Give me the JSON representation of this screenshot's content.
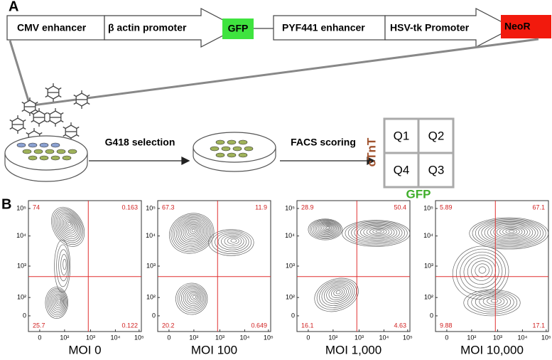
{
  "panel_a": {
    "label": "A",
    "construct": [
      "CMV enhancer",
      "β actin promoter",
      "GFP",
      "PYF441 enhancer",
      "HSV-tk Promoter",
      "NeoR"
    ],
    "steps": [
      "G418 selection",
      "FACS scoring"
    ],
    "quadrant_grid": {
      "y_label": "cTnT",
      "x_label": "GFP",
      "cells": [
        "Q1",
        "Q2",
        "Q4",
        "Q3"
      ]
    }
  },
  "panel_b": {
    "label": "B",
    "yticks": [
      "10⁵",
      "10⁴",
      "10³",
      "10²",
      "0"
    ],
    "xticks": [
      "0",
      "10²",
      "10³",
      "10⁴",
      "10⁵"
    ],
    "plots": [
      {
        "title": "MOI 0",
        "quadrants": [
          "74",
          "0.163",
          "25.7",
          "0.122"
        ]
      },
      {
        "title": "MOI 100",
        "quadrants": [
          "67.3",
          "11.9",
          "20.2",
          "0.649"
        ]
      },
      {
        "title": "MOI 1,000",
        "quadrants": [
          "28.9",
          "50.4",
          "16.1",
          "4.63"
        ]
      },
      {
        "title": "MOI 10,000",
        "quadrants": [
          "5.89",
          "67.1",
          "9.88",
          "17.1"
        ]
      }
    ]
  }
}
